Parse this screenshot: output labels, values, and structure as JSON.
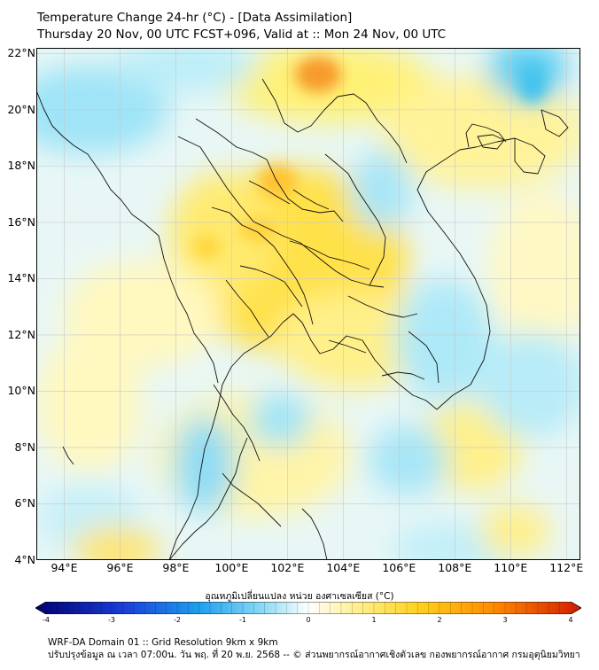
{
  "header": {
    "title_line1": "Temperature Change 24-hr (°C) - [Data Assimilation]",
    "title_line2": "Thursday 20 Nov, 00 UTC FCST+096, Valid at :: Mon 24 Nov, 00 UTC"
  },
  "map": {
    "lat_labels": [
      "22°N",
      "20°N",
      "18°N",
      "16°N",
      "14°N",
      "12°N",
      "10°N",
      "8°N",
      "6°N",
      "4°N"
    ],
    "lon_labels": [
      "94°E",
      "96°E",
      "98°E",
      "100°E",
      "102°E",
      "104°E",
      "106°E",
      "108°E",
      "110°E",
      "112°E"
    ],
    "lon_range": [
      93,
      112.5
    ],
    "lat_range": [
      4,
      22.2
    ]
  },
  "colorbar": {
    "title": "อุณหภูมิเปลี่ยนแปลง หน่วย องศาเซลเซียส (°C)",
    "min": -4,
    "max": 4,
    "ticks": [
      "-4",
      "-3",
      "-2",
      "-1",
      "0",
      "1",
      "2",
      "3",
      "4"
    ],
    "colors": {
      "deep_negative": "#00006e",
      "strong_negative": "#1a3cd8",
      "negative": "#1ea0ee",
      "mild_negative": "#8fdcf5",
      "neutral": "#ffffff",
      "mild_positive": "#fff19a",
      "positive": "#ffd21e",
      "strong_positive": "#ff8a00",
      "deep_positive": "#d21a00"
    }
  },
  "footer": {
    "line1": "WRF-DA Domain 01 :: Grid Resolution 9km x 9km",
    "line2": "ปรับปรุงข้อมูล ณ เวลา 07:00น. วัน พฤ. ที่ 20 พ.ย. 2568 -- © ส่วนพยากรณ์อากาศเชิงตัวเลข กองพยากรณ์อากาศ กรมอุตุนิยมวิทยา"
  }
}
